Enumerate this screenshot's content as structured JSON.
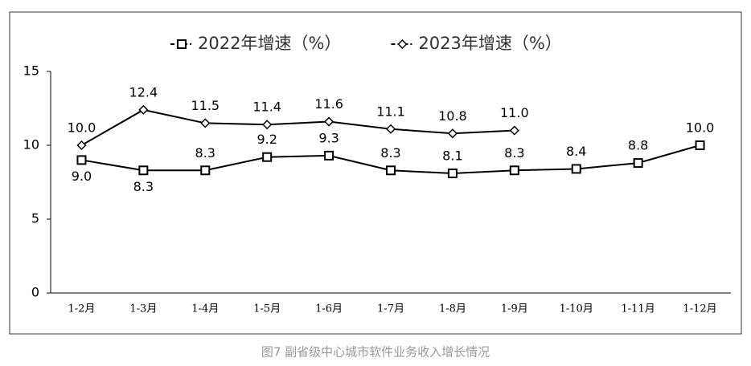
{
  "chart_data": {
    "type": "line",
    "caption": "图7  副省级中心城市软件业务收入增长情况",
    "categories": [
      "1-2月",
      "1-3月",
      "1-4月",
      "1-5月",
      "1-6月",
      "1-7月",
      "1-8月",
      "1-9月",
      "1-10月",
      "1-11月",
      "1-12月"
    ],
    "series": [
      {
        "name": "2022年增速（%）",
        "color": "#000000",
        "marker": "square",
        "values": [
          9.0,
          8.3,
          8.3,
          9.2,
          9.3,
          8.3,
          8.1,
          8.3,
          8.4,
          8.8,
          10.0
        ],
        "value_labels": [
          "9.0",
          "8.3",
          "8.3",
          "9.2",
          "9.3",
          "8.3",
          "8.1",
          "8.3",
          "8.4",
          "8.8",
          "10.0"
        ]
      },
      {
        "name": "2023年增速（%）",
        "color": "#000000",
        "marker": "diamond",
        "values": [
          10.0,
          12.4,
          11.5,
          11.4,
          11.6,
          11.1,
          10.8,
          11.0,
          null,
          null,
          null
        ],
        "value_labels": [
          "10.0",
          "12.4",
          "11.5",
          "11.4",
          "11.6",
          "11.1",
          "10.8",
          "11.0",
          null,
          null,
          null
        ]
      }
    ],
    "ylim": [
      0,
      15
    ],
    "yticks": [
      0,
      5,
      10,
      15
    ],
    "grid": false,
    "legend": "top"
  }
}
